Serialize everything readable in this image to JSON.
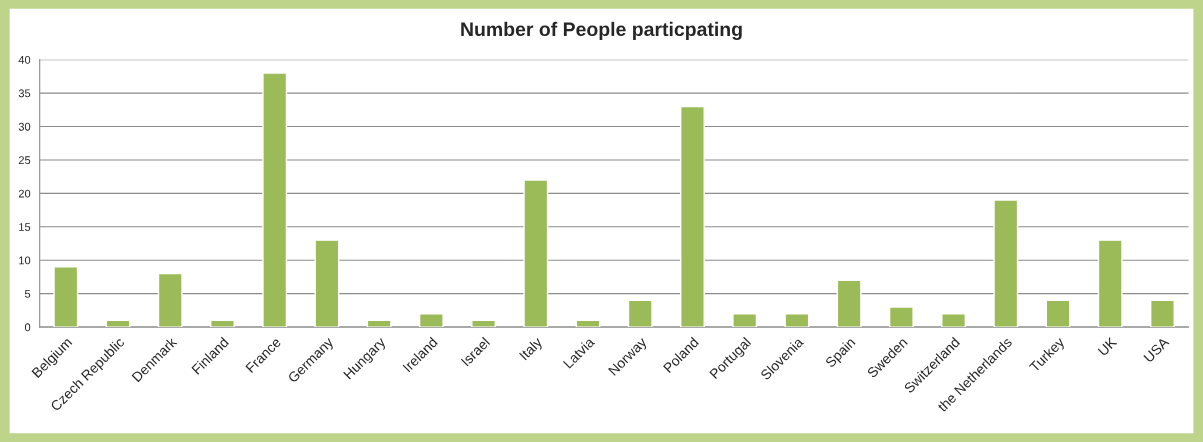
{
  "chart_data": {
    "type": "bar",
    "title": "Number of People particpating",
    "categories": [
      "Belgium",
      "Czech Republic",
      "Denmark",
      "Finland",
      "France",
      "Germany",
      "Hungary",
      "Ireland",
      "Israel",
      "Italy",
      "Latvia",
      "Norway",
      "Poland",
      "Portugal",
      "Slovenia",
      "Spain",
      "Sweden",
      "Switzerland",
      "the Netherlands",
      "Turkey",
      "UK",
      "USA"
    ],
    "values": [
      9,
      1,
      8,
      1,
      38,
      13,
      1,
      2,
      1,
      22,
      1,
      4,
      33,
      2,
      2,
      7,
      3,
      2,
      19,
      4,
      13,
      4
    ],
    "color": "#9bbb59",
    "ylim": [
      0,
      40
    ],
    "yticks": [
      0,
      5,
      10,
      15,
      20,
      25,
      30,
      35,
      40
    ],
    "grid": "y"
  }
}
